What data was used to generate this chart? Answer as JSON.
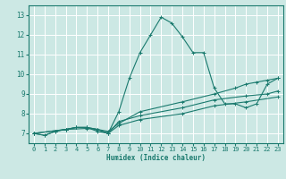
{
  "title": "",
  "xlabel": "Humidex (Indice chaleur)",
  "ylabel": "",
  "bg_color": "#cce8e4",
  "grid_color": "#ffffff",
  "line_color": "#1a7a6e",
  "xlim": [
    -0.5,
    23.5
  ],
  "ylim": [
    6.5,
    13.5
  ],
  "xticks": [
    0,
    1,
    2,
    3,
    4,
    5,
    6,
    7,
    8,
    9,
    10,
    11,
    12,
    13,
    14,
    15,
    16,
    17,
    18,
    19,
    20,
    21,
    22,
    23
  ],
  "yticks": [
    7,
    8,
    9,
    10,
    11,
    12,
    13
  ],
  "lines": [
    {
      "x": [
        0,
        1,
        2,
        3,
        4,
        5,
        6,
        7,
        8,
        9,
        10,
        11,
        12,
        13,
        14,
        15,
        16,
        17,
        18,
        19,
        20,
        21,
        22,
        23
      ],
      "y": [
        7.0,
        6.9,
        7.1,
        7.2,
        7.3,
        7.3,
        7.1,
        7.0,
        8.1,
        9.8,
        11.1,
        12.0,
        12.9,
        12.6,
        11.9,
        11.1,
        11.1,
        9.3,
        8.5,
        8.5,
        8.3,
        8.5,
        9.5,
        9.8
      ]
    },
    {
      "x": [
        0,
        1,
        2,
        3,
        4,
        5,
        6,
        7,
        8,
        10,
        14,
        17,
        19,
        20,
        21,
        22,
        23
      ],
      "y": [
        7.0,
        6.9,
        7.1,
        7.2,
        7.3,
        7.3,
        7.2,
        7.1,
        7.5,
        8.1,
        8.6,
        9.0,
        9.3,
        9.5,
        9.6,
        9.7,
        9.8
      ]
    },
    {
      "x": [
        0,
        3,
        4,
        5,
        6,
        7,
        8,
        10,
        14,
        17,
        20,
        22,
        23
      ],
      "y": [
        7.0,
        7.2,
        7.3,
        7.3,
        7.2,
        7.0,
        7.6,
        7.9,
        8.3,
        8.7,
        8.9,
        9.0,
        9.15
      ]
    },
    {
      "x": [
        0,
        3,
        5,
        6,
        7,
        8,
        10,
        14,
        17,
        20,
        23
      ],
      "y": [
        7.0,
        7.2,
        7.25,
        7.2,
        7.0,
        7.4,
        7.7,
        8.0,
        8.4,
        8.6,
        8.85
      ]
    }
  ]
}
